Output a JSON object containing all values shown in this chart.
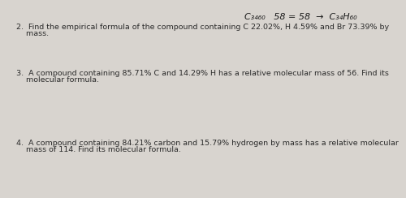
{
  "background_color": "#d8d4cf",
  "text_color": "#2a2a2a",
  "handwritten_color": "#1a1a1a",
  "header_line1": "C₃₄₆₀    58 = 58  →  C₃₄H₆₀",
  "q2_line1": "2.  Find the empirical formula of the compound containing C 22.02%, H 4.59% and Br 73.39% by",
  "q2_line2": "    mass.",
  "q3_line1": "3.  A compound containing 85.71% C and 14.29% H has a relative molecular mass of 56. Find its",
  "q3_line2": "    molecular formula.",
  "q4_line1": "4.  A compound containing 84.21% carbon and 15.79% hydrogen by mass has a relative molecular",
  "q4_line2": "    mass of 114. Find its molecular formula.",
  "font_size_body": 6.8,
  "font_size_header": 8.0
}
